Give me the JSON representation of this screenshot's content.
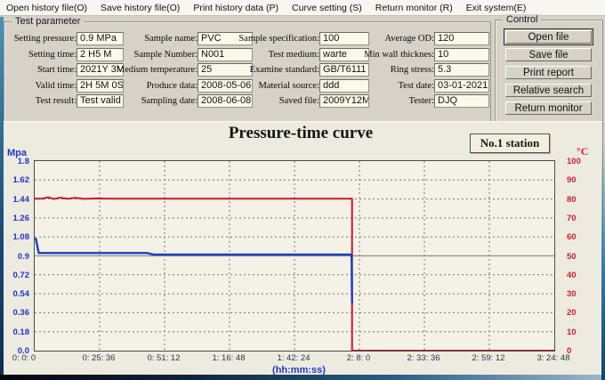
{
  "menu": {
    "items": [
      "Open history file(O)",
      "Save history file(O)",
      "Print history data (P)",
      "Curve setting (S)",
      "Return monitor (R)",
      "Exit system(E)"
    ]
  },
  "params": {
    "title": "Test parameter",
    "columns": [
      {
        "fields": [
          {
            "label": "Setting pressure:",
            "value": "0.9 MPa"
          },
          {
            "label": "Setting time:",
            "value": "2 H5 M"
          },
          {
            "label": "Start time:",
            "value": "2021Y 3M"
          },
          {
            "label": "Valid time:",
            "value": "2H 5M 0S"
          },
          {
            "label": "Test result:",
            "value": "Test valid"
          }
        ]
      },
      {
        "fields": [
          {
            "label": "Sample name:",
            "value": "PVC"
          },
          {
            "label": "Sample Number:",
            "value": "N001"
          },
          {
            "label": "Medium temperature:",
            "value": "25"
          },
          {
            "label": "Produce data:",
            "value": "2008-05-06"
          },
          {
            "label": "Sampling date:",
            "value": "2008-06-08"
          }
        ]
      },
      {
        "fields": [
          {
            "label": "Sample specification:",
            "value": "100"
          },
          {
            "label": "Test medium:",
            "value": "warte"
          },
          {
            "label": "Examine standard:",
            "value": "GB/T6111"
          },
          {
            "label": "Material source:",
            "value": "ddd"
          },
          {
            "label": "Saved file:",
            "value": "2009Y12M"
          }
        ]
      },
      {
        "fields": [
          {
            "label": "Average OD:",
            "value": "120"
          },
          {
            "label": "Min wall thicknes:",
            "value": "10"
          },
          {
            "label": "Ring stress:",
            "value": "5.3"
          },
          {
            "label": "Test date:",
            "value": "03-01-2021"
          },
          {
            "label": "Tester:",
            "value": "DJQ"
          }
        ]
      }
    ]
  },
  "control": {
    "title": "Control",
    "buttons": [
      "Open file",
      "Save file",
      "Print report",
      "Relative search",
      "Return monitor"
    ],
    "default_button": "Open file"
  },
  "chart": {
    "title": "Pressure-time curve",
    "station_label": "No.1 station",
    "y_left_unit": "Mpa",
    "y_right_unit": "°C",
    "x_unit": "(hh:mm:ss)"
  },
  "chart_data": {
    "type": "line",
    "title": "Pressure-time curve",
    "x_range_seconds": [
      0,
      12288
    ],
    "x_tick_seconds": [
      0,
      1536,
      3072,
      4608,
      6144,
      7680,
      9216,
      10752,
      12288
    ],
    "x_tick_labels": [
      "0: 0: 0",
      "0: 25: 36",
      "0: 51: 12",
      "1: 16: 48",
      "1: 42: 24",
      "2: 8: 0",
      "2: 33: 36",
      "2: 59: 12",
      "3: 24: 48"
    ],
    "xlabel": "(hh:mm:ss)",
    "y_left": {
      "label": "Mpa",
      "min": 0,
      "max": 1.8,
      "tick_labels": [
        "1.8",
        "1.62",
        "1.44",
        "1.26",
        "1.08",
        "0.9",
        "0.72",
        "0.54",
        "0.36",
        "0.18",
        "0.0"
      ],
      "color": "#2036c8"
    },
    "y_right": {
      "label": "°C",
      "min": 0,
      "max": 100,
      "tick_labels": [
        "100",
        "90",
        "80",
        "70",
        "60",
        "50",
        "40",
        "30",
        "20",
        "10",
        "0"
      ],
      "color": "#d01f2e"
    },
    "grid": {
      "h_dashed_values_mpa": [
        1.62,
        1.44,
        1.26,
        1.08,
        0.72,
        0.54,
        0.36,
        0.18
      ],
      "v_dashed_tick_indices": [
        1,
        2,
        3,
        4,
        5,
        6,
        7
      ],
      "solid_reference_mpa": 0.9
    },
    "series": [
      {
        "name": "temperature",
        "axis": "right",
        "color": "#c81a28",
        "width": 2,
        "points": [
          [
            0,
            80.2
          ],
          [
            180,
            80.2
          ],
          [
            320,
            80.9
          ],
          [
            450,
            80.0
          ],
          [
            600,
            80.7
          ],
          [
            780,
            80.1
          ],
          [
            950,
            80.6
          ],
          [
            1150,
            80.1
          ],
          [
            1500,
            80.3
          ],
          [
            1800,
            80.2
          ],
          [
            7505,
            80.2
          ],
          [
            7505,
            0
          ],
          [
            12288,
            0
          ]
        ]
      },
      {
        "name": "pressure",
        "axis": "left",
        "color": "#1c3ec0",
        "width": 2.4,
        "points": [
          [
            0,
            1.06
          ],
          [
            30,
            1.06
          ],
          [
            95,
            0.927
          ],
          [
            2650,
            0.927
          ],
          [
            2820,
            0.912
          ],
          [
            7495,
            0.912
          ],
          [
            7505,
            0.45
          ]
        ]
      },
      {
        "name": "setting-pressure-reference",
        "axis": "left",
        "color": "#8f8f8f",
        "width": 1.3,
        "points": [
          [
            0,
            0.9
          ],
          [
            12288,
            0.9
          ]
        ]
      }
    ]
  }
}
